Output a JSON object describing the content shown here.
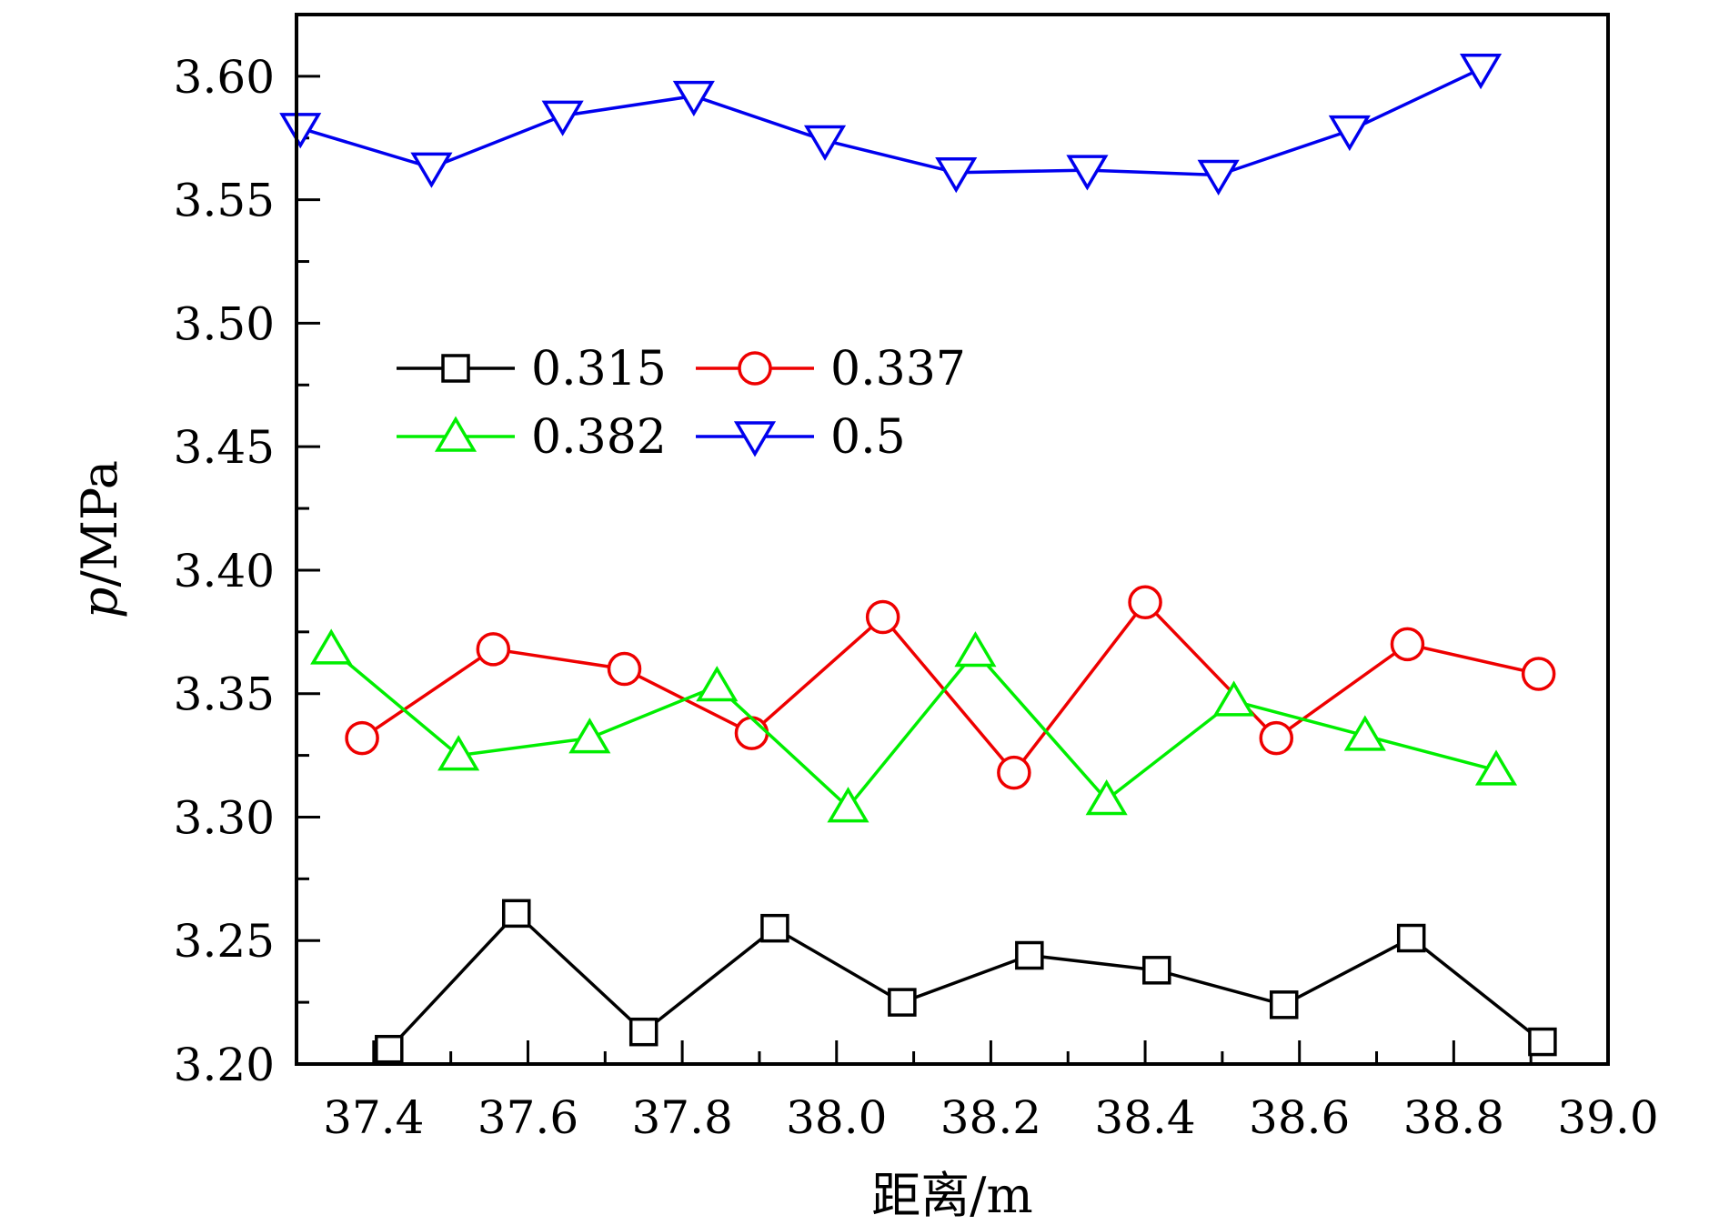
{
  "chart_data": {
    "type": "line",
    "title": "",
    "xlabel": "距离/m",
    "ylabel_italic": "p",
    "ylabel_rest": "/MPa",
    "xlim": [
      37.3,
      39.0
    ],
    "ylim": [
      3.2,
      3.625
    ],
    "x_ticks": [
      37.4,
      37.6,
      37.8,
      38.0,
      38.2,
      38.4,
      38.6,
      38.8,
      39.0
    ],
    "x_tick_labels": [
      "37.4",
      "37.6",
      "37.8",
      "38.0",
      "38.2",
      "38.4",
      "38.6",
      "38.8",
      "39.0"
    ],
    "y_ticks": [
      3.2,
      3.25,
      3.3,
      3.35,
      3.4,
      3.45,
      3.5,
      3.55,
      3.6
    ],
    "y_tick_labels": [
      "3.20",
      "3.25",
      "3.30",
      "3.35",
      "3.40",
      "3.45",
      "3.50",
      "3.55",
      "3.60"
    ],
    "grid": false,
    "legend_position": "upper-left",
    "series": [
      {
        "name": "0.315",
        "color": "#000000",
        "marker": "square",
        "points": [
          [
            37.42,
            3.206
          ],
          [
            37.585,
            3.261
          ],
          [
            37.75,
            3.213
          ],
          [
            37.92,
            3.255
          ],
          [
            38.085,
            3.225
          ],
          [
            38.25,
            3.244
          ],
          [
            38.415,
            3.238
          ],
          [
            38.58,
            3.224
          ],
          [
            38.745,
            3.251
          ],
          [
            38.915,
            3.209
          ]
        ]
      },
      {
        "name": "0.337",
        "color": "#ee0000",
        "marker": "circle",
        "points": [
          [
            37.385,
            3.332
          ],
          [
            37.555,
            3.368
          ],
          [
            37.725,
            3.36
          ],
          [
            37.89,
            3.334
          ],
          [
            38.06,
            3.381
          ],
          [
            38.23,
            3.318
          ],
          [
            38.4,
            3.387
          ],
          [
            38.57,
            3.332
          ],
          [
            38.74,
            3.37
          ],
          [
            38.91,
            3.358
          ]
        ]
      },
      {
        "name": "0.382",
        "color": "#00ee00",
        "marker": "triangle-up",
        "points": [
          [
            37.345,
            3.368
          ],
          [
            37.51,
            3.325
          ],
          [
            37.68,
            3.332
          ],
          [
            37.845,
            3.353
          ],
          [
            38.015,
            3.304
          ],
          [
            38.18,
            3.367
          ],
          [
            38.35,
            3.307
          ],
          [
            38.515,
            3.347
          ],
          [
            38.685,
            3.333
          ],
          [
            38.855,
            3.319
          ]
        ]
      },
      {
        "name": "0.5",
        "color": "#0000ee",
        "marker": "triangle-down",
        "points": [
          [
            37.305,
            3.579
          ],
          [
            37.475,
            3.563
          ],
          [
            37.645,
            3.584
          ],
          [
            37.815,
            3.592
          ],
          [
            37.985,
            3.574
          ],
          [
            38.155,
            3.561
          ],
          [
            38.325,
            3.562
          ],
          [
            38.495,
            3.56
          ],
          [
            38.665,
            3.578
          ],
          [
            38.835,
            3.603
          ]
        ]
      }
    ]
  }
}
